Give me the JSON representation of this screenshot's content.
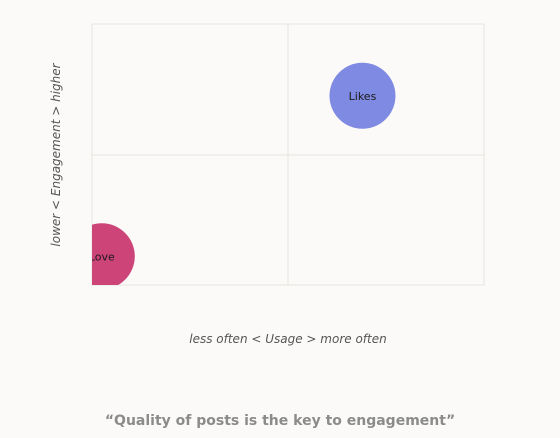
{
  "chart_data": {
    "type": "scatter",
    "xlabel": "less often < Usage > more often",
    "ylabel": "lower < Engagement > higher",
    "xlim": [
      0,
      2
    ],
    "ylim": [
      0,
      2
    ],
    "grid": true,
    "points": [
      {
        "label": "Likes",
        "x": 1.38,
        "y": 1.45,
        "color": "#7f8ae2"
      },
      {
        "label": "Love",
        "x": 0.05,
        "y": 0.22,
        "color": "#cc4478"
      }
    ]
  },
  "caption": "“Quality of posts is the key to engagement”"
}
